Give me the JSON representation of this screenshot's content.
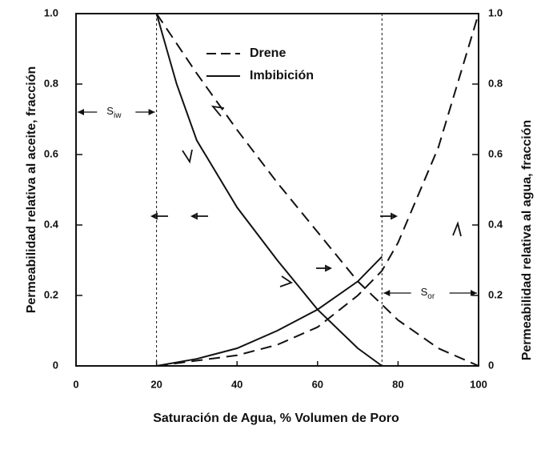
{
  "chart_data": {
    "type": "line",
    "x_label": "Saturación de Agua, % Volumen de Poro",
    "y_label": "Permeabilidad relativa al  aceite, fracción",
    "y2_label": "Permeabilidad relativa al  agua, fracción",
    "xlim": [
      0,
      100
    ],
    "xticks": [
      0,
      20,
      40,
      60,
      80,
      100
    ],
    "ylim": [
      0,
      1
    ],
    "yticks": [
      0,
      0.2,
      0.4,
      0.6,
      0.8,
      {
        "value": 1,
        "label": "1.0"
      }
    ],
    "y2lim": [
      0,
      1
    ],
    "y2ticks": [
      0,
      0.2,
      0.4,
      0.6,
      0.8,
      {
        "value": 1,
        "label": "1.0"
      }
    ],
    "legend": [
      {
        "label": "Drene",
        "dash": true
      },
      {
        "label": "Imbibición",
        "dash": false
      }
    ],
    "series": [
      {
        "dash": true,
        "color": "#111",
        "axis": "y",
        "x": [
          20,
          30,
          40,
          50,
          60,
          70,
          80,
          90,
          100
        ],
        "values": [
          1.0,
          0.83,
          0.67,
          0.52,
          0.38,
          0.24,
          0.13,
          0.05,
          0
        ]
      },
      {
        "dash": false,
        "color": "#111",
        "axis": "y",
        "x": [
          20,
          25,
          30,
          40,
          50,
          60,
          70,
          76
        ],
        "values": [
          1.0,
          0.8,
          0.64,
          0.45,
          0.3,
          0.16,
          0.05,
          0
        ]
      },
      {
        "dash": true,
        "color": "#111",
        "axis": "y2",
        "x": [
          20,
          40,
          50,
          60,
          70,
          76,
          80,
          90,
          100
        ],
        "values": [
          0,
          0.03,
          0.06,
          0.11,
          0.2,
          0.27,
          0.35,
          0.62,
          1.0
        ]
      },
      {
        "dash": false,
        "color": "#111",
        "axis": "y2",
        "x": [
          20,
          30,
          40,
          50,
          60,
          70,
          76
        ],
        "values": [
          0,
          0.02,
          0.05,
          0.1,
          0.16,
          0.24,
          0.31
        ]
      }
    ],
    "vlines": [
      20,
      76
    ],
    "annotations": [
      {
        "text": "S",
        "sub": "iw"
      },
      {
        "text": "S",
        "sub": "or"
      }
    ]
  }
}
